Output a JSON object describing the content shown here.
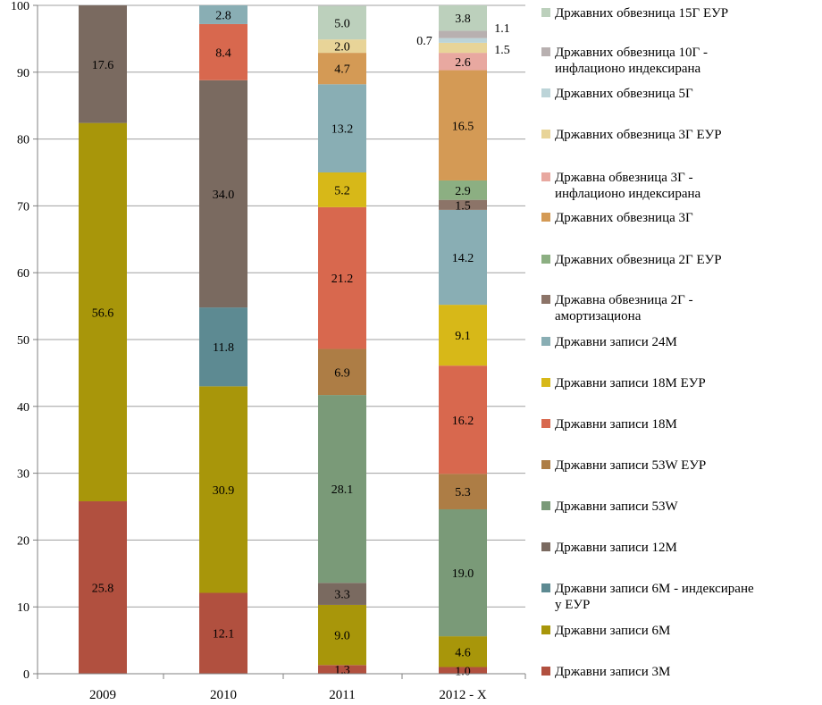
{
  "chart_data": {
    "type": "bar",
    "stacked": true,
    "categories": [
      "2009",
      "2010",
      "2011",
      "2012 - X"
    ],
    "ylim": [
      0,
      100
    ],
    "yticks": [
      0,
      10,
      20,
      30,
      40,
      50,
      60,
      70,
      80,
      90,
      100
    ],
    "grid": true,
    "legend_position": "right",
    "series": [
      {
        "name": "Државни записи 3М",
        "color": "#b1503f",
        "values": [
          25.8,
          12.1,
          1.3,
          1.0
        ],
        "labels": [
          "25.8",
          "12.1",
          "1.3",
          "1.0"
        ]
      },
      {
        "name": "Државни записи 6М",
        "color": "#a8960a",
        "values": [
          56.6,
          30.9,
          9.0,
          4.6
        ],
        "labels": [
          "56.6",
          "30.9",
          "9.0",
          "4.6"
        ]
      },
      {
        "name": "Државни записи 6М - индексиране у ЕУР",
        "color": "#5d8a92",
        "values": [
          0,
          11.8,
          0,
          0
        ],
        "labels": [
          "",
          "11.8",
          "",
          ""
        ]
      },
      {
        "name": "Државни записи 12М",
        "color": "#7a6a60",
        "values": [
          17.6,
          34.0,
          3.3,
          0
        ],
        "labels": [
          "17.6",
          "34.0",
          "3.3",
          ""
        ]
      },
      {
        "name": "Државни записи 53W",
        "color": "#7a9a78",
        "values": [
          0,
          0,
          28.1,
          19.0
        ],
        "labels": [
          "",
          "",
          "28.1",
          "19.0"
        ]
      },
      {
        "name": "Државни записи 53W ЕУР",
        "color": "#ad7d45",
        "values": [
          0,
          0,
          6.9,
          5.3
        ],
        "labels": [
          "",
          "",
          "6.9",
          "5.3"
        ]
      },
      {
        "name": "Државни записи 18М",
        "color": "#d8684e",
        "values": [
          0,
          8.4,
          21.2,
          16.2
        ],
        "labels": [
          "",
          "8.4",
          "21.2",
          "16.2"
        ]
      },
      {
        "name": "Државни записи 18М ЕУР",
        "color": "#d7b818",
        "values": [
          0,
          0,
          5.2,
          9.1
        ],
        "labels": [
          "",
          "",
          "5.2",
          "9.1"
        ]
      },
      {
        "name": "Државни записи 24М",
        "color": "#89aeb4",
        "values": [
          0,
          2.8,
          13.2,
          14.2
        ],
        "labels": [
          "",
          "2.8",
          "13.2",
          "14.2"
        ]
      },
      {
        "name": "Државна обвезница 2Г - амортизациона",
        "color": "#8c7468",
        "values": [
          0,
          0,
          0,
          1.5
        ],
        "labels": [
          "",
          "",
          "",
          "1.5"
        ]
      },
      {
        "name": "Државних обвезница 2Г ЕУР",
        "color": "#8caf82",
        "values": [
          0,
          0,
          0,
          2.9
        ],
        "labels": [
          "",
          "",
          "",
          "2.9"
        ]
      },
      {
        "name": "Државних обвезница 3Г",
        "color": "#d49a55",
        "values": [
          0,
          0,
          4.7,
          16.5
        ],
        "labels": [
          "",
          "",
          "4.7",
          "16.5"
        ]
      },
      {
        "name": "Државна обвезница 3Г - инфлационо индексирана",
        "color": "#e8a8a0",
        "values": [
          0,
          0,
          0,
          2.6
        ],
        "labels": [
          "",
          "",
          "",
          "2.6"
        ]
      },
      {
        "name": "Државних обвезница 3Г ЕУР",
        "color": "#e8d498",
        "values": [
          0,
          0,
          2.0,
          1.5
        ],
        "labels": [
          "",
          "",
          "2.0",
          "1.5"
        ]
      },
      {
        "name": "Државних обвезница 5Г",
        "color": "#bcd4d8",
        "values": [
          0,
          0,
          0,
          0.7
        ],
        "labels": [
          "",
          "",
          "",
          "0.7"
        ]
      },
      {
        "name": "Државних обвезница 10Г - инфлационо индексирана",
        "color": "#b8b0b0",
        "values": [
          0,
          0,
          0,
          1.1
        ],
        "labels": [
          "",
          "",
          "",
          "1.1"
        ]
      },
      {
        "name": "Државних обвезница 15Г ЕУР",
        "color": "#bcd0bc",
        "values": [
          0,
          0,
          5.0,
          3.8
        ],
        "labels": [
          "",
          "",
          "5.0",
          "3.8"
        ]
      }
    ]
  }
}
